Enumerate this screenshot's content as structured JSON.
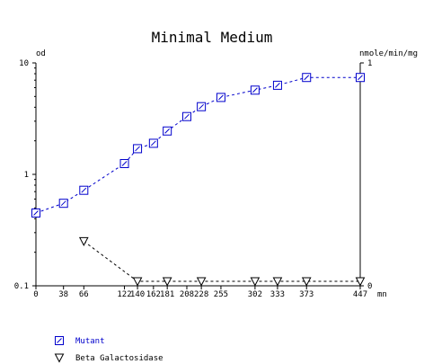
{
  "chart_data": {
    "type": "line",
    "title": "Minimal Medium",
    "left_axis_label": "od",
    "right_axis_label": "nmole/min/mg",
    "x_unit_label": "mn",
    "x_ticks": [
      0,
      38,
      66,
      122,
      140,
      162,
      181,
      208,
      228,
      255,
      302,
      333,
      373,
      447
    ],
    "x_tick_labels": [
      "0",
      "38",
      "66",
      "122",
      "140",
      "162",
      "181",
      "208",
      "228",
      "255",
      "302",
      "333",
      "373",
      "447"
    ],
    "xlim": [
      0,
      447
    ],
    "left_scale": "log",
    "left_ylim": [
      0.1,
      10
    ],
    "left_ticks": [
      0.1,
      1,
      10
    ],
    "left_tick_labels": [
      "0.1",
      "1",
      "10"
    ],
    "right_ylim": [
      0,
      1
    ],
    "right_ticks": [
      0,
      1
    ],
    "right_tick_labels": [
      "0",
      "1"
    ],
    "grid": false,
    "legend_position": "bottom-left",
    "series": [
      {
        "name": "Mutant",
        "axis": "left",
        "marker": "square",
        "color": "#0000cc",
        "line_style": "dashed",
        "x": [
          0,
          38,
          66,
          122,
          140,
          162,
          181,
          208,
          228,
          255,
          302,
          333,
          373,
          447
        ],
        "values": [
          0.45,
          0.55,
          0.72,
          1.25,
          1.7,
          1.9,
          2.45,
          3.3,
          4.05,
          4.9,
          5.7,
          6.3,
          7.4,
          7.4
        ]
      },
      {
        "name": "Beta Galactosidase",
        "axis": "right",
        "marker": "triangle-down",
        "color": "#000000",
        "line_style": "dashed",
        "x": [
          66,
          140,
          181,
          228,
          302,
          333,
          373,
          447
        ],
        "values": [
          0.2,
          0.02,
          0.02,
          0.02,
          0.02,
          0.02,
          0.02,
          0.02
        ]
      }
    ]
  }
}
